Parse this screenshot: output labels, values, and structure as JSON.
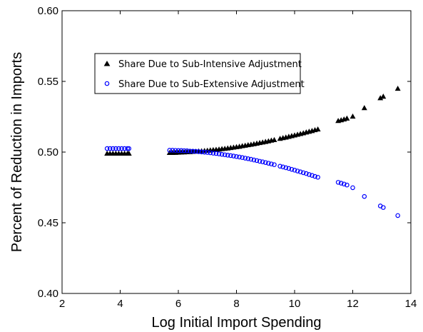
{
  "chart_data": {
    "type": "scatter",
    "title": "",
    "xlabel": "Log Initial Import Spending",
    "ylabel": "Percent of Reduction in Imports",
    "xlim": [
      2,
      14
    ],
    "ylim": [
      0.4,
      0.6
    ],
    "xticks": [
      "2",
      "4",
      "6",
      "8",
      "10",
      "12",
      "14"
    ],
    "yticks": [
      "0.40",
      "0.45",
      "0.50",
      "0.55",
      "0.60"
    ],
    "grid": false,
    "legend_position": "top-left",
    "series": [
      {
        "name": "Share Due to Sub-Intensive Adjustment",
        "marker": "triangle",
        "color": "#000000",
        "x": [
          3.55,
          3.65,
          3.75,
          3.85,
          3.95,
          4.05,
          4.15,
          4.25,
          4.3,
          5.7,
          5.8,
          5.9,
          6.0,
          6.1,
          6.2,
          6.3,
          6.4,
          6.5,
          6.6,
          6.7,
          6.8,
          6.9,
          7.0,
          7.1,
          7.2,
          7.3,
          7.4,
          7.5,
          7.6,
          7.7,
          7.8,
          7.9,
          8.0,
          8.1,
          8.2,
          8.3,
          8.4,
          8.5,
          8.6,
          8.7,
          8.8,
          8.9,
          9.0,
          9.1,
          9.2,
          9.3,
          9.5,
          9.6,
          9.7,
          9.8,
          9.9,
          10.0,
          10.1,
          10.2,
          10.3,
          10.4,
          10.5,
          10.6,
          10.7,
          10.8,
          11.5,
          11.6,
          11.7,
          11.8,
          12.0,
          12.4,
          12.95,
          13.05,
          13.55
        ],
        "y": [
          0.499,
          0.499,
          0.499,
          0.499,
          0.499,
          0.499,
          0.499,
          0.499,
          0.499,
          0.4995,
          0.4995,
          0.4996,
          0.4997,
          0.4998,
          0.4999,
          0.5,
          0.5001,
          0.5003,
          0.5004,
          0.5006,
          0.5007,
          0.5009,
          0.5011,
          0.5013,
          0.5015,
          0.5017,
          0.5019,
          0.5022,
          0.5024,
          0.5027,
          0.503,
          0.5033,
          0.5036,
          0.5039,
          0.5043,
          0.5046,
          0.505,
          0.5053,
          0.5057,
          0.5061,
          0.5065,
          0.5069,
          0.5073,
          0.5077,
          0.5082,
          0.5086,
          0.5095,
          0.51,
          0.5104,
          0.5109,
          0.5114,
          0.5119,
          0.5124,
          0.5129,
          0.5134,
          0.514,
          0.5145,
          0.515,
          0.5156,
          0.5161,
          0.5221,
          0.5226,
          0.5232,
          0.5238,
          0.5252,
          0.5312,
          0.5382,
          0.5393,
          0.5449
        ]
      },
      {
        "name": "Share Due to Sub-Extensive Adjustment",
        "marker": "circle",
        "color": "#0000ff",
        "x": [
          3.55,
          3.65,
          3.75,
          3.85,
          3.95,
          4.05,
          4.15,
          4.25,
          4.3,
          5.7,
          5.8,
          5.9,
          6.0,
          6.1,
          6.2,
          6.3,
          6.4,
          6.5,
          6.6,
          6.7,
          6.8,
          6.9,
          7.0,
          7.1,
          7.2,
          7.3,
          7.4,
          7.5,
          7.6,
          7.7,
          7.8,
          7.9,
          8.0,
          8.1,
          8.2,
          8.3,
          8.4,
          8.5,
          8.6,
          8.7,
          8.8,
          8.9,
          9.0,
          9.1,
          9.2,
          9.3,
          9.5,
          9.6,
          9.7,
          9.8,
          9.9,
          10.0,
          10.1,
          10.2,
          10.3,
          10.4,
          10.5,
          10.6,
          10.7,
          10.8,
          11.5,
          11.6,
          11.7,
          11.8,
          12.0,
          12.4,
          12.95,
          13.05,
          13.55
        ],
        "y": [
          0.5025,
          0.5025,
          0.5025,
          0.5025,
          0.5025,
          0.5025,
          0.5025,
          0.5025,
          0.5025,
          0.5013,
          0.5013,
          0.5012,
          0.5011,
          0.5011,
          0.501,
          0.5009,
          0.5007,
          0.5006,
          0.5005,
          0.5003,
          0.5001,
          0.4999,
          0.4997,
          0.4995,
          0.4992,
          0.499,
          0.4987,
          0.4984,
          0.4981,
          0.4978,
          0.4975,
          0.4972,
          0.4968,
          0.4965,
          0.4961,
          0.4957,
          0.4953,
          0.4949,
          0.4944,
          0.494,
          0.4935,
          0.4931,
          0.4926,
          0.4921,
          0.4916,
          0.4911,
          0.49,
          0.4895,
          0.4889,
          0.4884,
          0.4878,
          0.4872,
          0.4866,
          0.486,
          0.4854,
          0.4848,
          0.4841,
          0.4835,
          0.4828,
          0.4822,
          0.4786,
          0.478,
          0.4774,
          0.4767,
          0.4748,
          0.4686,
          0.4619,
          0.4608,
          0.4551
        ]
      }
    ]
  }
}
